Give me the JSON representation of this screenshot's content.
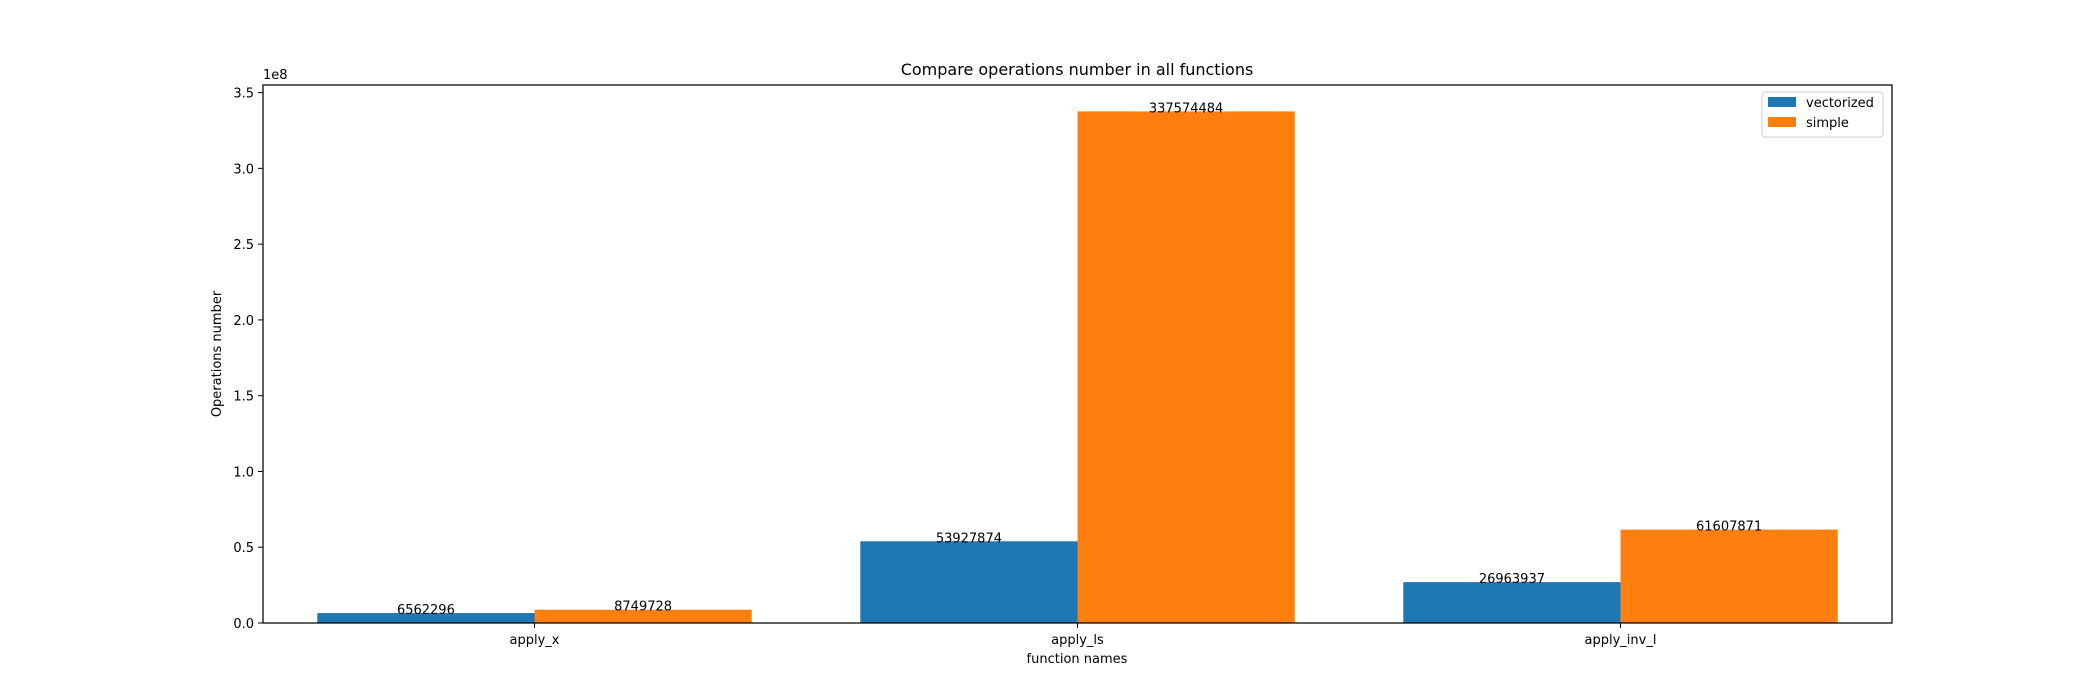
{
  "chart_data": {
    "type": "bar",
    "title": "Compare operations number in all functions",
    "xlabel": "function names",
    "ylabel": "Operations number",
    "offset_text": "1e8",
    "categories": [
      "apply_x",
      "apply_ls",
      "apply_inv_l"
    ],
    "series": [
      {
        "name": "vectorized",
        "color": "#1f77b4",
        "values": [
          6562296,
          53927874,
          26963937
        ],
        "labels": [
          "6562296",
          "53927874",
          "26963937"
        ]
      },
      {
        "name": "simple",
        "color": "#ff7f0e",
        "values": [
          8749728,
          337574484,
          61607871
        ],
        "labels": [
          "8749728",
          "337574484",
          "61607871"
        ]
      }
    ],
    "ylim": [
      0,
      355000000
    ],
    "y_ticks": [
      0,
      50000000,
      100000000,
      150000000,
      200000000,
      250000000,
      300000000,
      350000000
    ],
    "y_tick_labels": [
      "0.0",
      "0.5",
      "1.0",
      "1.5",
      "2.0",
      "2.5",
      "3.0",
      "3.5"
    ],
    "grid": false,
    "legend_position": "top-right"
  }
}
